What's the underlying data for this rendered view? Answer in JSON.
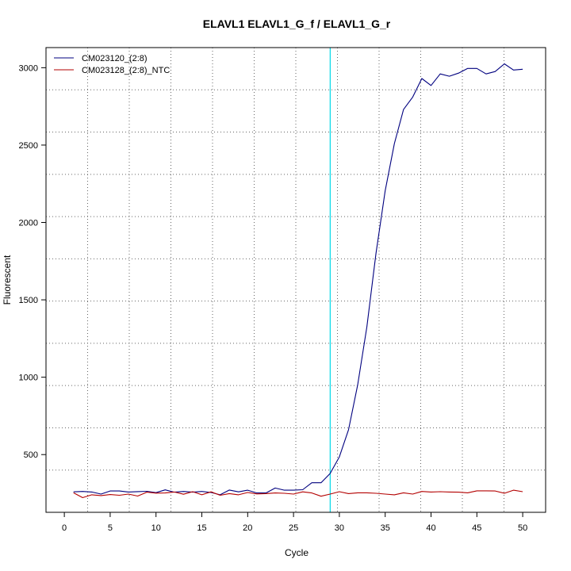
{
  "chart_data": {
    "type": "line",
    "title": "ELAVL1  ELAVL1_G_f / ELAVL1_G_r",
    "xlabel": "Cycle",
    "ylabel": "Fluorescent",
    "xlim": [
      -2,
      52.5
    ],
    "ylim": [
      127,
      3130
    ],
    "x_ticks": [
      0,
      5,
      10,
      15,
      20,
      25,
      30,
      35,
      40,
      45,
      50
    ],
    "y_ticks": [
      500,
      1000,
      1500,
      2000,
      2500,
      3000
    ],
    "grid": "dotted",
    "legend_position": "top-left",
    "threshold_cycle": 29,
    "threshold_color": "#00d8e8",
    "series": [
      {
        "name": "CM023120_(2:8)",
        "color": "#00007f",
        "x": [
          1,
          2,
          3,
          4,
          5,
          6,
          7,
          8,
          9,
          10,
          11,
          12,
          13,
          14,
          15,
          16,
          17,
          18,
          19,
          20,
          21,
          22,
          23,
          24,
          25,
          26,
          27,
          28,
          29,
          30,
          31,
          32,
          33,
          34,
          35,
          36,
          37,
          38,
          39,
          40,
          41,
          42,
          43,
          44,
          45,
          46,
          47,
          48,
          49,
          50
        ],
        "values": [
          259,
          262,
          258,
          245,
          265,
          265,
          258,
          261,
          263,
          254,
          272,
          257,
          262,
          257,
          262,
          255,
          240,
          271,
          259,
          270,
          252,
          252,
          284,
          270,
          270,
          273,
          318,
          318,
          378,
          485,
          661,
          950,
          1325,
          1800,
          2205,
          2510,
          2730,
          2810,
          2930,
          2885,
          2960,
          2945,
          2965,
          2995,
          2995,
          2960,
          2975,
          3025,
          2985,
          2990
        ]
      },
      {
        "name": "CM023128_(2:8)_NTC",
        "color": "#b30000",
        "x": [
          1,
          2,
          3,
          4,
          5,
          6,
          7,
          8,
          9,
          10,
          11,
          12,
          13,
          14,
          15,
          16,
          17,
          18,
          19,
          20,
          21,
          22,
          23,
          24,
          25,
          26,
          27,
          28,
          29,
          30,
          31,
          32,
          33,
          34,
          35,
          36,
          37,
          38,
          39,
          40,
          41,
          42,
          43,
          44,
          45,
          46,
          47,
          48,
          49,
          50
        ],
        "values": [
          253,
          222,
          240,
          235,
          242,
          237,
          245,
          232,
          257,
          251,
          252,
          258,
          244,
          260,
          240,
          259,
          237,
          248,
          240,
          255,
          246,
          248,
          252,
          250,
          245,
          259,
          252,
          231,
          245,
          260,
          248,
          253,
          253,
          250,
          245,
          240,
          253,
          245,
          262,
          258,
          260,
          258,
          257,
          253,
          266,
          266,
          265,
          250,
          270,
          260
        ]
      }
    ]
  }
}
